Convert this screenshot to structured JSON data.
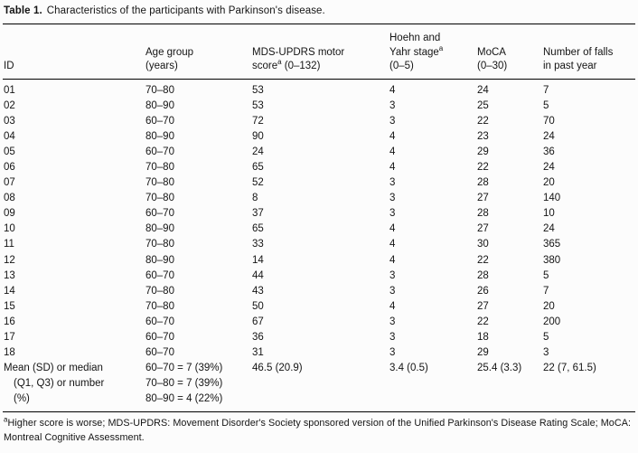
{
  "title": {
    "label": "Table 1.",
    "text": "Characteristics of the participants with Parkinson's disease."
  },
  "table": {
    "header": {
      "id": "ID",
      "age_line1": "Age group",
      "age_line2": "(years)",
      "mds_line1": "MDS-UPDRS motor",
      "mds_word": "score",
      "mds_sup": "a",
      "mds_range": " (0–132)",
      "hy_line1": "Hoehn and",
      "hy_word": "Yahr stage",
      "hy_sup": "a",
      "hy_line3": "(0–5)",
      "moca_line1": "MoCA",
      "moca_line2": "(0–30)",
      "falls_line1": "Number of falls",
      "falls_line2": "in past year"
    },
    "rows": [
      {
        "id": "01",
        "age": "70–80",
        "mds": "53",
        "hy": "4",
        "moca": "24",
        "falls": "7"
      },
      {
        "id": "02",
        "age": "80–90",
        "mds": "53",
        "hy": "3",
        "moca": "25",
        "falls": "5"
      },
      {
        "id": "03",
        "age": "60–70",
        "mds": "72",
        "hy": "3",
        "moca": "22",
        "falls": "70"
      },
      {
        "id": "04",
        "age": "80–90",
        "mds": "90",
        "hy": "4",
        "moca": "23",
        "falls": "24"
      },
      {
        "id": "05",
        "age": "60–70",
        "mds": "24",
        "hy": "4",
        "moca": "29",
        "falls": "36"
      },
      {
        "id": "06",
        "age": "70–80",
        "mds": "65",
        "hy": "4",
        "moca": "22",
        "falls": "24"
      },
      {
        "id": "07",
        "age": "70–80",
        "mds": "52",
        "hy": "3",
        "moca": "28",
        "falls": "20"
      },
      {
        "id": "08",
        "age": "70–80",
        "mds": "8",
        "hy": "3",
        "moca": "27",
        "falls": "140"
      },
      {
        "id": "09",
        "age": "60–70",
        "mds": "37",
        "hy": "3",
        "moca": "28",
        "falls": "10"
      },
      {
        "id": "10",
        "age": "80–90",
        "mds": "65",
        "hy": "4",
        "moca": "27",
        "falls": "24"
      },
      {
        "id": "11",
        "age": "70–80",
        "mds": "33",
        "hy": "4",
        "moca": "30",
        "falls": "365"
      },
      {
        "id": "12",
        "age": "80–90",
        "mds": "14",
        "hy": "4",
        "moca": "22",
        "falls": "380"
      },
      {
        "id": "13",
        "age": "60–70",
        "mds": "44",
        "hy": "3",
        "moca": "28",
        "falls": "5"
      },
      {
        "id": "14",
        "age": "70–80",
        "mds": "43",
        "hy": "3",
        "moca": "26",
        "falls": "7"
      },
      {
        "id": "15",
        "age": "70–80",
        "mds": "50",
        "hy": "4",
        "moca": "27",
        "falls": "20"
      },
      {
        "id": "16",
        "age": "60–70",
        "mds": "67",
        "hy": "3",
        "moca": "22",
        "falls": "200"
      },
      {
        "id": "17",
        "age": "60–70",
        "mds": "36",
        "hy": "3",
        "moca": "18",
        "falls": "5"
      },
      {
        "id": "18",
        "age": "60–70",
        "mds": "31",
        "hy": "3",
        "moca": "29",
        "falls": "3"
      }
    ],
    "summary": {
      "label_lines": [
        "Mean (SD) or median",
        "(Q1, Q3) or number",
        "(%)"
      ],
      "age_lines": [
        "60–70 = 7 (39%)",
        "70–80 = 7 (39%)",
        "80–90 = 4 (22%)"
      ],
      "mds": "46.5 (20.9)",
      "hy": "3.4 (0.5)",
      "moca": "25.4 (3.3)",
      "falls": "22 (7, 61.5)"
    }
  },
  "footnote": {
    "sup": "a",
    "text": "Higher score is worse; MDS-UPDRS: Movement Disorder's Society sponsored version of the Unified Parkinson's Disease Rating Scale; MoCA: Montreal Cognitive Assessment."
  }
}
